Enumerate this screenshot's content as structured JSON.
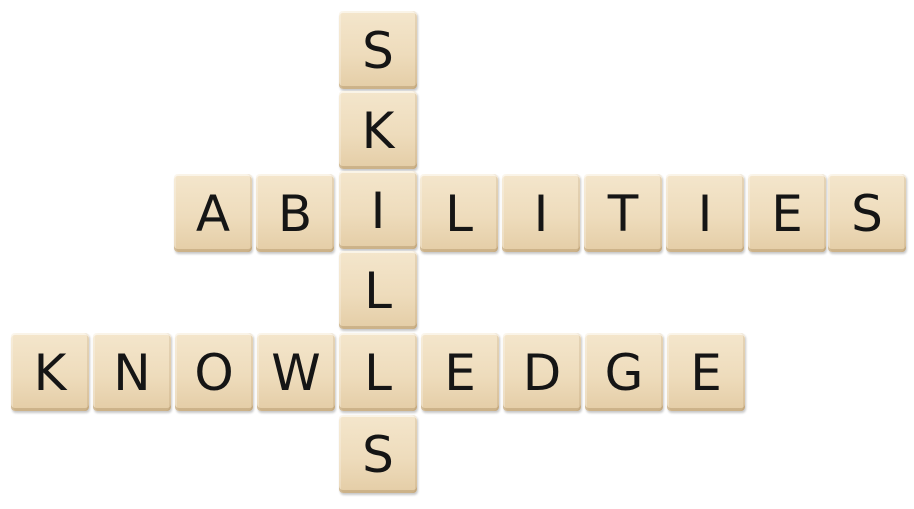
{
  "scene": "Wooden letter tiles arranged crossword-style on a white background",
  "tile_color": "#eedcbc",
  "letter_color": "#151515",
  "background_color": "#ffffff",
  "words": {
    "skills": {
      "direction": "vertical",
      "letters": [
        "S",
        "K",
        "I",
        "L",
        "L",
        "S"
      ]
    },
    "abilities": {
      "direction": "horizontal",
      "letters": [
        "A",
        "B",
        "I",
        "L",
        "I",
        "T",
        "I",
        "E",
        "S"
      ]
    },
    "knowledge": {
      "direction": "horizontal",
      "letters": [
        "K",
        "N",
        "O",
        "W",
        "L",
        "E",
        "D",
        "G",
        "E"
      ]
    }
  }
}
